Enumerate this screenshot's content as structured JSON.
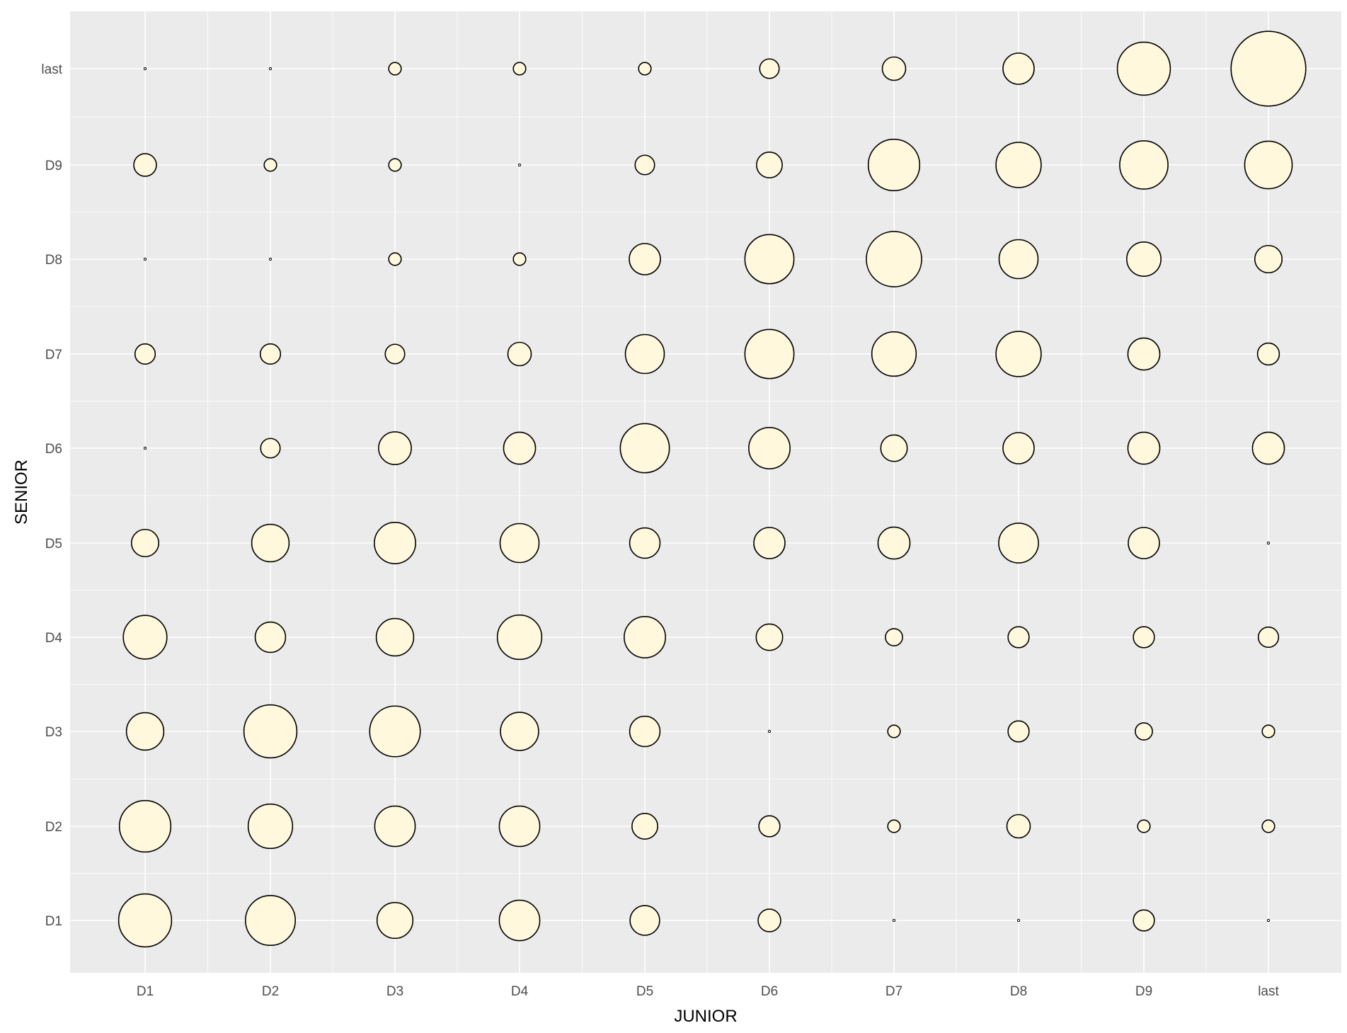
{
  "chart_data": {
    "type": "scatter",
    "subtype": "bubble",
    "title": "",
    "xlabel": "JUNIOR",
    "ylabel": "SENIOR",
    "x_categories": [
      "D1",
      "D2",
      "D3",
      "D4",
      "D5",
      "D6",
      "D7",
      "D8",
      "D9",
      "last"
    ],
    "y_categories": [
      "D1",
      "D2",
      "D3",
      "D4",
      "D5",
      "D6",
      "D7",
      "D8",
      "D9",
      "last"
    ],
    "size_scale": "relative bubble radius (0-1)",
    "grid": true,
    "legend": "none",
    "colors": {
      "panel_background": "#ebebeb",
      "grid_line": "#ffffff",
      "bubble_fill": "#fff8dc",
      "bubble_stroke": "#000000",
      "tick_text": "#4d4d4d",
      "title_text": "#000000"
    },
    "points": [
      {
        "x": "D1",
        "y": "D1",
        "size": 0.68
      },
      {
        "x": "D2",
        "y": "D1",
        "size": 0.64
      },
      {
        "x": "D3",
        "y": "D1",
        "size": 0.46
      },
      {
        "x": "D4",
        "y": "D1",
        "size": 0.52
      },
      {
        "x": "D5",
        "y": "D1",
        "size": 0.38
      },
      {
        "x": "D6",
        "y": "D1",
        "size": 0.29
      },
      {
        "x": "D7",
        "y": "D1",
        "size": 0.03
      },
      {
        "x": "D8",
        "y": "D1",
        "size": 0.03
      },
      {
        "x": "D9",
        "y": "D1",
        "size": 0.27
      },
      {
        "x": "last",
        "y": "D1",
        "size": 0.03
      },
      {
        "x": "D1",
        "y": "D2",
        "size": 0.66
      },
      {
        "x": "D2",
        "y": "D2",
        "size": 0.57
      },
      {
        "x": "D3",
        "y": "D2",
        "size": 0.52
      },
      {
        "x": "D4",
        "y": "D2",
        "size": 0.52
      },
      {
        "x": "D5",
        "y": "D2",
        "size": 0.33
      },
      {
        "x": "D6",
        "y": "D2",
        "size": 0.27
      },
      {
        "x": "D7",
        "y": "D2",
        "size": 0.16
      },
      {
        "x": "D8",
        "y": "D2",
        "size": 0.3
      },
      {
        "x": "D9",
        "y": "D2",
        "size": 0.16
      },
      {
        "x": "last",
        "y": "D2",
        "size": 0.16
      },
      {
        "x": "D1",
        "y": "D3",
        "size": 0.48
      },
      {
        "x": "D2",
        "y": "D3",
        "size": 0.68
      },
      {
        "x": "D3",
        "y": "D3",
        "size": 0.65
      },
      {
        "x": "D4",
        "y": "D3",
        "size": 0.49
      },
      {
        "x": "D5",
        "y": "D3",
        "size": 0.39
      },
      {
        "x": "D6",
        "y": "D3",
        "size": 0.03
      },
      {
        "x": "D7",
        "y": "D3",
        "size": 0.16
      },
      {
        "x": "D8",
        "y": "D3",
        "size": 0.27
      },
      {
        "x": "D9",
        "y": "D3",
        "size": 0.22
      },
      {
        "x": "last",
        "y": "D3",
        "size": 0.16
      },
      {
        "x": "D1",
        "y": "D4",
        "size": 0.56
      },
      {
        "x": "D2",
        "y": "D4",
        "size": 0.39
      },
      {
        "x": "D3",
        "y": "D4",
        "size": 0.48
      },
      {
        "x": "D4",
        "y": "D4",
        "size": 0.57
      },
      {
        "x": "D5",
        "y": "D4",
        "size": 0.53
      },
      {
        "x": "D6",
        "y": "D4",
        "size": 0.34
      },
      {
        "x": "D7",
        "y": "D4",
        "size": 0.22
      },
      {
        "x": "D8",
        "y": "D4",
        "size": 0.27
      },
      {
        "x": "D9",
        "y": "D4",
        "size": 0.27
      },
      {
        "x": "last",
        "y": "D4",
        "size": 0.26
      },
      {
        "x": "D1",
        "y": "D5",
        "size": 0.35
      },
      {
        "x": "D2",
        "y": "D5",
        "size": 0.48
      },
      {
        "x": "D3",
        "y": "D5",
        "size": 0.53
      },
      {
        "x": "D4",
        "y": "D5",
        "size": 0.5
      },
      {
        "x": "D5",
        "y": "D5",
        "size": 0.39
      },
      {
        "x": "D6",
        "y": "D5",
        "size": 0.4
      },
      {
        "x": "D7",
        "y": "D5",
        "size": 0.41
      },
      {
        "x": "D8",
        "y": "D5",
        "size": 0.51
      },
      {
        "x": "D9",
        "y": "D5",
        "size": 0.4
      },
      {
        "x": "last",
        "y": "D5",
        "size": 0.03
      },
      {
        "x": "D1",
        "y": "D6",
        "size": 0.03
      },
      {
        "x": "D2",
        "y": "D6",
        "size": 0.25
      },
      {
        "x": "D3",
        "y": "D6",
        "size": 0.42
      },
      {
        "x": "D4",
        "y": "D6",
        "size": 0.41
      },
      {
        "x": "D5",
        "y": "D6",
        "size": 0.63
      },
      {
        "x": "D6",
        "y": "D6",
        "size": 0.53
      },
      {
        "x": "D7",
        "y": "D6",
        "size": 0.34
      },
      {
        "x": "D8",
        "y": "D6",
        "size": 0.4
      },
      {
        "x": "D9",
        "y": "D6",
        "size": 0.41
      },
      {
        "x": "last",
        "y": "D6",
        "size": 0.41
      },
      {
        "x": "D1",
        "y": "D7",
        "size": 0.26
      },
      {
        "x": "D2",
        "y": "D7",
        "size": 0.26
      },
      {
        "x": "D3",
        "y": "D7",
        "size": 0.25
      },
      {
        "x": "D4",
        "y": "D7",
        "size": 0.3
      },
      {
        "x": "D5",
        "y": "D7",
        "size": 0.5
      },
      {
        "x": "D6",
        "y": "D7",
        "size": 0.63
      },
      {
        "x": "D7",
        "y": "D7",
        "size": 0.57
      },
      {
        "x": "D8",
        "y": "D7",
        "size": 0.58
      },
      {
        "x": "D9",
        "y": "D7",
        "size": 0.41
      },
      {
        "x": "last",
        "y": "D7",
        "size": 0.28
      },
      {
        "x": "D1",
        "y": "D8",
        "size": 0.03
      },
      {
        "x": "D2",
        "y": "D8",
        "size": 0.03
      },
      {
        "x": "D3",
        "y": "D8",
        "size": 0.16
      },
      {
        "x": "D4",
        "y": "D8",
        "size": 0.16
      },
      {
        "x": "D5",
        "y": "D8",
        "size": 0.4
      },
      {
        "x": "D6",
        "y": "D8",
        "size": 0.63
      },
      {
        "x": "D7",
        "y": "D8",
        "size": 0.71
      },
      {
        "x": "D8",
        "y": "D8",
        "size": 0.5
      },
      {
        "x": "D9",
        "y": "D8",
        "size": 0.44
      },
      {
        "x": "last",
        "y": "D8",
        "size": 0.35
      },
      {
        "x": "D1",
        "y": "D9",
        "size": 0.29
      },
      {
        "x": "D2",
        "y": "D9",
        "size": 0.16
      },
      {
        "x": "D3",
        "y": "D9",
        "size": 0.16
      },
      {
        "x": "D4",
        "y": "D9",
        "size": 0.03
      },
      {
        "x": "D5",
        "y": "D9",
        "size": 0.25
      },
      {
        "x": "D6",
        "y": "D9",
        "size": 0.33
      },
      {
        "x": "D7",
        "y": "D9",
        "size": 0.66
      },
      {
        "x": "D8",
        "y": "D9",
        "size": 0.58
      },
      {
        "x": "D9",
        "y": "D9",
        "size": 0.62
      },
      {
        "x": "last",
        "y": "D9",
        "size": 0.61
      },
      {
        "x": "D1",
        "y": "last",
        "size": 0.03
      },
      {
        "x": "D2",
        "y": "last",
        "size": 0.03
      },
      {
        "x": "D3",
        "y": "last",
        "size": 0.16
      },
      {
        "x": "D4",
        "y": "last",
        "size": 0.16
      },
      {
        "x": "D5",
        "y": "last",
        "size": 0.16
      },
      {
        "x": "D6",
        "y": "last",
        "size": 0.25
      },
      {
        "x": "D7",
        "y": "last",
        "size": 0.3
      },
      {
        "x": "D8",
        "y": "last",
        "size": 0.4
      },
      {
        "x": "D9",
        "y": "last",
        "size": 0.68
      },
      {
        "x": "last",
        "y": "last",
        "size": 0.96
      }
    ]
  }
}
